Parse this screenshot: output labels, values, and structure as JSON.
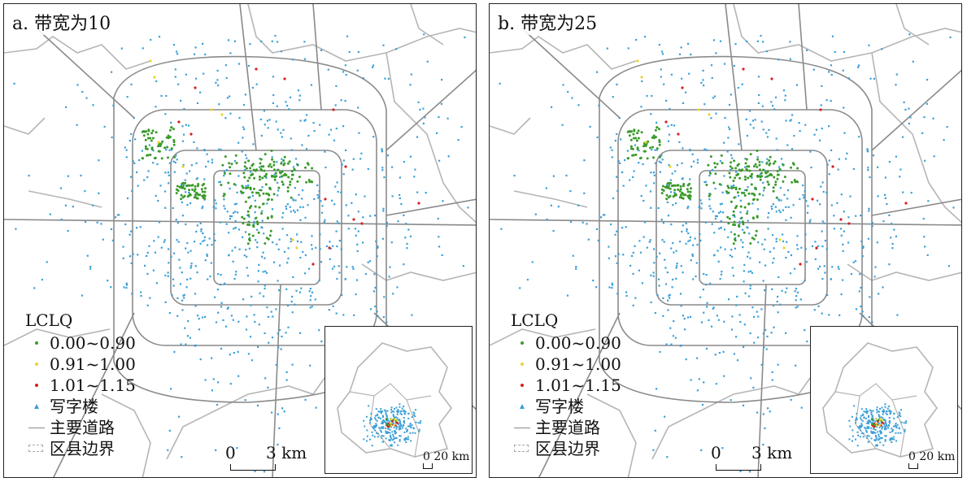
{
  "panels": [
    {
      "id": "a",
      "title": "a. 带宽为10"
    },
    {
      "id": "b",
      "title": "b. 带宽为25"
    }
  ],
  "legend": {
    "title": "LCLQ",
    "items": [
      {
        "label": "0.00~0.90",
        "symbol": "dot",
        "color": "#3a9a2a"
      },
      {
        "label": "0.91~1.00",
        "symbol": "dot",
        "color": "#e8d630"
      },
      {
        "label": "1.01~1.15",
        "symbol": "dot",
        "color": "#d42020"
      },
      {
        "label": "写字楼",
        "symbol": "triangle",
        "color": "#3a9fd8"
      },
      {
        "label": "主要道路",
        "symbol": "line",
        "color": "#888888"
      },
      {
        "label": "区县边界",
        "symbol": "dashed-box",
        "color": "#aaaaaa"
      }
    ]
  },
  "scalebar": {
    "zero": "0",
    "end": "3 km"
  },
  "inset": {
    "scale_label": "0 20 km"
  },
  "colors": {
    "green": "#3a9a2a",
    "yellow": "#e8d630",
    "red": "#d42020",
    "blue": "#3a9fd8",
    "road": "#8a8a8a",
    "boundary": "#b5b5b5"
  }
}
